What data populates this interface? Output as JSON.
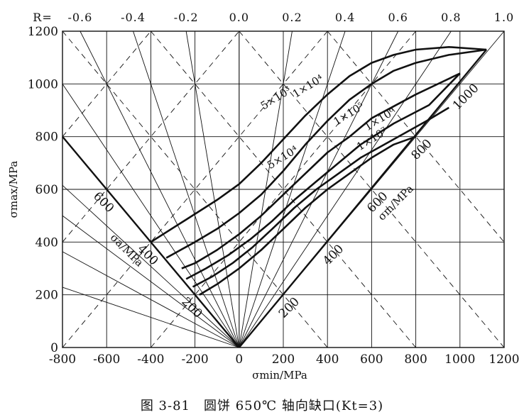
{
  "chart_data": {
    "type": "line",
    "subtype": "constant-life (Goodman/Haigh) diagram",
    "caption": "图 3-81　圆饼 650℃ 轴向缺口(Kt=3)",
    "xlabel": "σmin/MPa",
    "ylabel": "σmax/MPa",
    "sigma_a_label": "σa/MPa",
    "sigma_m_label": "σm/MPa",
    "xlim": [
      -800,
      1200
    ],
    "ylim": [
      0,
      1200
    ],
    "x_ticks": [
      "-800",
      "-600",
      "-400",
      "-200",
      "0",
      "200",
      "400",
      "600",
      "800",
      "1000",
      "1200"
    ],
    "y_ticks": [
      "0",
      "200",
      "400",
      "600",
      "800",
      "1000",
      "1200"
    ],
    "grid": true,
    "R_axis_label": "R=",
    "R_values": [
      "-0.6",
      "-0.4",
      "-0.2",
      "0.0",
      "0.2",
      "0.4",
      "0.6",
      "0.8",
      "1.0"
    ],
    "R_numeric": [
      -0.6,
      -0.4,
      -0.2,
      0.0,
      0.2,
      0.4,
      0.6,
      0.8,
      1.0
    ],
    "sigma_a_ticks": [
      {
        "label": "200",
        "x": -200,
        "y": 200
      },
      {
        "label": "400",
        "x": -400,
        "y": 400
      },
      {
        "label": "600",
        "x": -600,
        "y": 600
      }
    ],
    "sigma_m_ticks": [
      {
        "label": "200",
        "x": 200,
        "y": 200
      },
      {
        "label": "400",
        "x": 400,
        "y": 400
      },
      {
        "label": "600",
        "x": 600,
        "y": 600
      },
      {
        "label": "800",
        "x": 800,
        "y": 800
      },
      {
        "label": "1000",
        "x": 1000,
        "y": 1000
      }
    ],
    "series": [
      {
        "name": "5×10³",
        "points": [
          [
            -400,
            400
          ],
          [
            -250,
            480
          ],
          [
            -100,
            560
          ],
          [
            0,
            620
          ],
          [
            100,
            700
          ],
          [
            200,
            790
          ],
          [
            300,
            880
          ],
          [
            400,
            960
          ],
          [
            500,
            1030
          ],
          [
            600,
            1080
          ],
          [
            700,
            1110
          ],
          [
            800,
            1130
          ],
          [
            950,
            1140
          ],
          [
            1120,
            1130
          ]
        ]
      },
      {
        "name": "1×10⁴",
        "points": [
          [
            -330,
            340
          ],
          [
            -200,
            400
          ],
          [
            -100,
            450
          ],
          [
            0,
            510
          ],
          [
            100,
            580
          ],
          [
            200,
            670
          ],
          [
            300,
            770
          ],
          [
            400,
            860
          ],
          [
            500,
            940
          ],
          [
            600,
            1000
          ],
          [
            700,
            1050
          ],
          [
            800,
            1080
          ],
          [
            950,
            1110
          ],
          [
            1120,
            1130
          ]
        ]
      },
      {
        "name": "5×10⁴",
        "points": [
          [
            -260,
            300
          ],
          [
            -200,
            320
          ],
          [
            -100,
            370
          ],
          [
            0,
            430
          ],
          [
            100,
            500
          ],
          [
            200,
            580
          ],
          [
            300,
            660
          ],
          [
            400,
            740
          ],
          [
            500,
            800
          ],
          [
            600,
            870
          ],
          [
            800,
            960
          ],
          [
            1000,
            1040
          ]
        ]
      },
      {
        "name": "1×10⁵",
        "points": [
          [
            -240,
            260
          ],
          [
            -150,
            300
          ],
          [
            -50,
            350
          ],
          [
            50,
            410
          ],
          [
            150,
            480
          ],
          [
            250,
            560
          ],
          [
            350,
            630
          ],
          [
            450,
            700
          ],
          [
            550,
            770
          ],
          [
            700,
            850
          ],
          [
            860,
            920
          ],
          [
            1000,
            1040
          ]
        ]
      },
      {
        "name": "1×10⁶",
        "points": [
          [
            -210,
            230
          ],
          [
            -120,
            270
          ],
          [
            -30,
            320
          ],
          [
            60,
            380
          ],
          [
            150,
            450
          ],
          [
            250,
            530
          ],
          [
            350,
            600
          ],
          [
            450,
            660
          ],
          [
            550,
            720
          ],
          [
            700,
            790
          ],
          [
            850,
            860
          ],
          [
            950,
            910
          ]
        ]
      },
      {
        "name": "1×10⁷",
        "points": [
          [
            -180,
            200
          ],
          [
            -100,
            240
          ],
          [
            0,
            300
          ],
          [
            100,
            370
          ],
          [
            200,
            450
          ],
          [
            300,
            530
          ],
          [
            400,
            600
          ],
          [
            500,
            660
          ],
          [
            600,
            720
          ],
          [
            700,
            770
          ],
          [
            800,
            800
          ]
        ]
      }
    ],
    "curve_labels": [
      {
        "text": "5×10³",
        "x": 175,
        "y": 935
      },
      {
        "text": "1×10⁴",
        "x": 320,
        "y": 980
      },
      {
        "text": "1×10⁵",
        "x": 505,
        "y": 875
      },
      {
        "text": "1×10⁶",
        "x": 645,
        "y": 855
      },
      {
        "text": "1×10⁷",
        "x": 610,
        "y": 780
      },
      {
        "text": "5×10⁴",
        "x": 205,
        "y": 710
      }
    ]
  }
}
